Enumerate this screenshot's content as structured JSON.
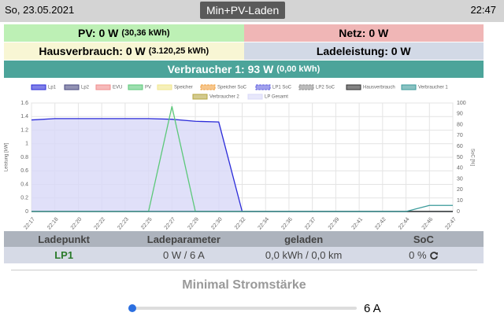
{
  "header": {
    "date": "So, 23.05.2021",
    "mode": "Min+PV-Laden",
    "time": "22:47"
  },
  "status": {
    "pv": "PV: 0 W",
    "pv_energy": "(30,36 kWh)",
    "grid": "Netz: 0 W",
    "house": "Hausverbrauch: 0 W",
    "house_energy": "(3.120,25 kWh)",
    "charge": "Ladeleistung: 0 W",
    "consumer": "Verbraucher 1: 93 W",
    "consumer_energy": "(0,00 kWh)"
  },
  "chart_data": {
    "type": "line",
    "ylabel": "Leistung [kW]",
    "y2label": "SoC [%]",
    "categories": [
      "22:17",
      "22:18",
      "22:20",
      "22:22",
      "22:23",
      "22:25",
      "22:27",
      "22:29",
      "22:30",
      "22:32",
      "22:34",
      "22:36",
      "22:37",
      "22:39",
      "22:41",
      "22:42",
      "22:44",
      "22:46",
      "22:47"
    ],
    "ylim": [
      0,
      1.6
    ],
    "yticks": [
      0,
      0.2,
      0.4,
      0.6,
      0.8,
      1,
      1.2,
      1.4,
      1.6
    ],
    "y2lim": [
      0,
      100
    ],
    "y2ticks": [
      0,
      10,
      20,
      30,
      40,
      50,
      60,
      70,
      80,
      90,
      100
    ],
    "grid": true,
    "series": [
      {
        "name": "LP Gesamt",
        "color": "#d8d8f8",
        "fill": true,
        "values": [
          1.35,
          1.37,
          1.37,
          1.37,
          1.37,
          1.37,
          1.36,
          1.33,
          1.32,
          0,
          0,
          0,
          0,
          0,
          0,
          0,
          0,
          0,
          0
        ]
      },
      {
        "name": "Lp1",
        "color": "#2b2bd9",
        "values": [
          1.35,
          1.37,
          1.37,
          1.37,
          1.37,
          1.37,
          1.36,
          1.33,
          1.32,
          0,
          0,
          0,
          0,
          0,
          0,
          0,
          0,
          0,
          0
        ]
      },
      {
        "name": "Lp2",
        "color": "#4a4a80",
        "values": [
          0,
          0,
          0,
          0,
          0,
          0,
          0,
          0,
          0,
          0,
          0,
          0,
          0,
          0,
          0,
          0,
          0,
          0,
          0
        ]
      },
      {
        "name": "EVU",
        "color": "#f08c8c",
        "values": [
          0,
          0,
          0,
          0,
          0,
          0,
          0,
          0,
          0,
          0,
          0,
          0,
          0,
          0,
          0,
          0,
          0,
          0,
          0
        ]
      },
      {
        "name": "PV",
        "color": "#5cc87a",
        "values": [
          0,
          0,
          0,
          0,
          0,
          0,
          1.55,
          0,
          0,
          0,
          0,
          0,
          0,
          0,
          0,
          0,
          0,
          0,
          0
        ]
      },
      {
        "name": "Speicher",
        "color": "#f0e68c",
        "values": [
          null,
          null,
          null,
          null,
          null,
          null,
          null,
          null,
          null,
          null,
          null,
          null,
          null,
          null,
          null,
          null,
          null,
          null,
          null
        ]
      },
      {
        "name": "Speicher SoC",
        "color": "#f0a040",
        "dashed": true,
        "axis": "y2",
        "values": [
          null,
          null,
          null,
          null,
          null,
          null,
          null,
          null,
          null,
          null,
          null,
          null,
          null,
          null,
          null,
          null,
          null,
          null,
          null
        ]
      },
      {
        "name": "LP1 SoC",
        "color": "#6060e0",
        "dashed": true,
        "axis": "y2",
        "values": [
          null,
          null,
          null,
          null,
          null,
          null,
          null,
          null,
          null,
          null,
          null,
          null,
          null,
          null,
          null,
          null,
          null,
          null,
          null
        ]
      },
      {
        "name": "LP2 SoC",
        "color": "#909090",
        "dashed": true,
        "axis": "y2",
        "values": [
          null,
          null,
          null,
          null,
          null,
          null,
          null,
          null,
          null,
          null,
          null,
          null,
          null,
          null,
          null,
          null,
          null,
          null,
          null
        ]
      },
      {
        "name": "Hausverbrauch",
        "color": "#303030",
        "values": [
          0,
          0,
          0,
          0,
          0,
          0,
          0,
          0,
          0,
          0,
          0,
          0,
          0,
          0,
          0,
          0,
          0,
          0,
          0
        ]
      },
      {
        "name": "Verbraucher 1",
        "color": "#3a9a9a",
        "values": [
          0,
          0,
          0,
          0,
          0,
          0,
          0,
          0,
          0,
          0,
          0,
          0,
          0,
          0,
          0,
          0,
          0,
          0.09,
          0.09
        ]
      },
      {
        "name": "Verbraucher 2",
        "color": "#b5a642",
        "values": [
          null,
          null,
          null,
          null,
          null,
          null,
          null,
          null,
          null,
          null,
          null,
          null,
          null,
          null,
          null,
          null,
          null,
          null,
          null
        ]
      }
    ]
  },
  "table": {
    "headers": [
      "Ladepunkt",
      "Ladeparameter",
      "geladen",
      "SoC"
    ],
    "rows": [
      [
        "LP1",
        "0 W / 6 A",
        "0,0 kWh / 0,0 km",
        "0 %"
      ]
    ]
  },
  "slider": {
    "title": "Minimal Stromstärke",
    "value": "6 A"
  }
}
